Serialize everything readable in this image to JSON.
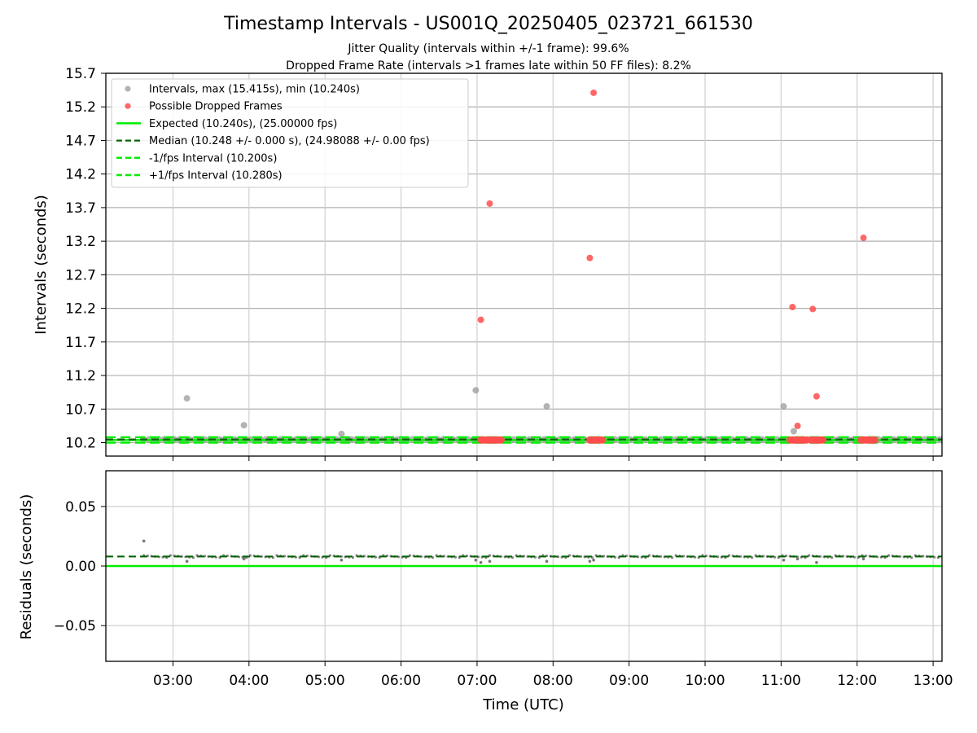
{
  "chart_data": {
    "type": "scatter",
    "title": "Timestamp Intervals - US001Q_20250405_023721_661530",
    "subtitle_1": "Jitter Quality (intervals within +/-1 frame): 99.6%",
    "subtitle_2": "Dropped Frame Rate (intervals >1 frames late within 50 FF files): 8.2%",
    "colors": {
      "intervals": "#999999",
      "dropped": "#ff4d4d",
      "expected": "#00ee00",
      "median": "#006400",
      "fps_band": "#00ee00",
      "residuals": "#666666"
    },
    "top_panel": {
      "ylabel": "Intervals (seconds)",
      "ylim": [
        10.0,
        15.7
      ],
      "ytick_labels": [
        "10.2",
        "10.7",
        "11.2",
        "11.7",
        "12.2",
        "12.7",
        "13.2",
        "13.7",
        "14.2",
        "14.7",
        "15.2",
        "15.7"
      ],
      "ytick_values": [
        10.2,
        10.7,
        11.2,
        11.7,
        12.2,
        12.7,
        13.2,
        13.7,
        14.2,
        14.7,
        15.2,
        15.7
      ],
      "grid": true,
      "legend_position": "top-left",
      "legend": [
        {
          "label": "Intervals, max (15.415s), min (10.240s)",
          "kind": "marker-gray"
        },
        {
          "label": "Possible Dropped Frames",
          "kind": "marker-red"
        },
        {
          "label": "Expected (10.240s), (25.00000 fps)",
          "kind": "line-expected"
        },
        {
          "label": "Median (10.248 +/- 0.000 s), (24.98088 +/- 0.00 fps)",
          "kind": "line-median"
        },
        {
          "label": "-1/fps Interval (10.200s)",
          "kind": "line-minus"
        },
        {
          "label": "+1/fps Interval (10.280s)",
          "kind": "line-plus"
        }
      ],
      "expected": 10.24,
      "median": 10.248,
      "minus_fps": 10.2,
      "plus_fps": 10.28,
      "series_intervals_outliers": [
        {
          "t": "03:11",
          "y": 10.86
        },
        {
          "t": "03:56",
          "y": 10.46
        },
        {
          "t": "05:13",
          "y": 10.33
        },
        {
          "t": "06:59",
          "y": 10.98
        },
        {
          "t": "07:55",
          "y": 10.74
        },
        {
          "t": "11:02",
          "y": 10.74
        },
        {
          "t": "11:10",
          "y": 10.37
        }
      ],
      "series_dropped": [
        {
          "t": "07:03",
          "y": 12.03
        },
        {
          "t": "07:10",
          "y": 13.76
        },
        {
          "t": "08:29",
          "y": 12.95
        },
        {
          "t": "08:32",
          "y": 15.41
        },
        {
          "t": "11:09",
          "y": 12.22
        },
        {
          "t": "11:13",
          "y": 10.45
        },
        {
          "t": "11:25",
          "y": 12.19
        },
        {
          "t": "11:28",
          "y": 10.89
        },
        {
          "t": "12:05",
          "y": 13.25
        }
      ],
      "dropped_clusters": [
        {
          "start": "07:03",
          "end": "07:19",
          "y": 10.24
        },
        {
          "start": "08:29",
          "end": "08:39",
          "y": 10.24
        },
        {
          "start": "11:07",
          "end": "11:20",
          "y": 10.24
        },
        {
          "start": "11:24",
          "end": "11:33",
          "y": 10.24
        },
        {
          "start": "12:03",
          "end": "12:14",
          "y": 10.24
        }
      ],
      "baseline_range": {
        "start": "02:37",
        "end": "13:05",
        "y": 10.248
      }
    },
    "bottom_panel": {
      "ylabel": "Residuals (seconds)",
      "ylim": [
        -0.08,
        0.08
      ],
      "ytick_labels": [
        "0.05",
        "0.00",
        "−0.05"
      ],
      "ytick_values": [
        0.05,
        0.0,
        -0.05
      ],
      "expected": 0.0,
      "median": 0.008,
      "residual_outliers": [
        {
          "t": "02:37",
          "y": 0.021
        },
        {
          "t": "03:11",
          "y": 0.004
        },
        {
          "t": "03:56",
          "y": 0.006
        },
        {
          "t": "05:13",
          "y": 0.005
        },
        {
          "t": "06:59",
          "y": 0.005
        },
        {
          "t": "07:03",
          "y": 0.003
        },
        {
          "t": "07:10",
          "y": 0.004
        },
        {
          "t": "07:55",
          "y": 0.004
        },
        {
          "t": "08:29",
          "y": 0.004
        },
        {
          "t": "08:32",
          "y": 0.005
        },
        {
          "t": "11:02",
          "y": 0.005
        },
        {
          "t": "11:13",
          "y": 0.006
        },
        {
          "t": "11:28",
          "y": 0.003
        },
        {
          "t": "12:05",
          "y": 0.006
        }
      ]
    },
    "xaxis": {
      "xlabel": "Time (UTC)",
      "xlim": [
        "02:07",
        "13:07"
      ],
      "tick_labels": [
        "03:00",
        "04:00",
        "05:00",
        "06:00",
        "07:00",
        "08:00",
        "09:00",
        "10:00",
        "11:00",
        "12:00",
        "13:00"
      ]
    }
  }
}
